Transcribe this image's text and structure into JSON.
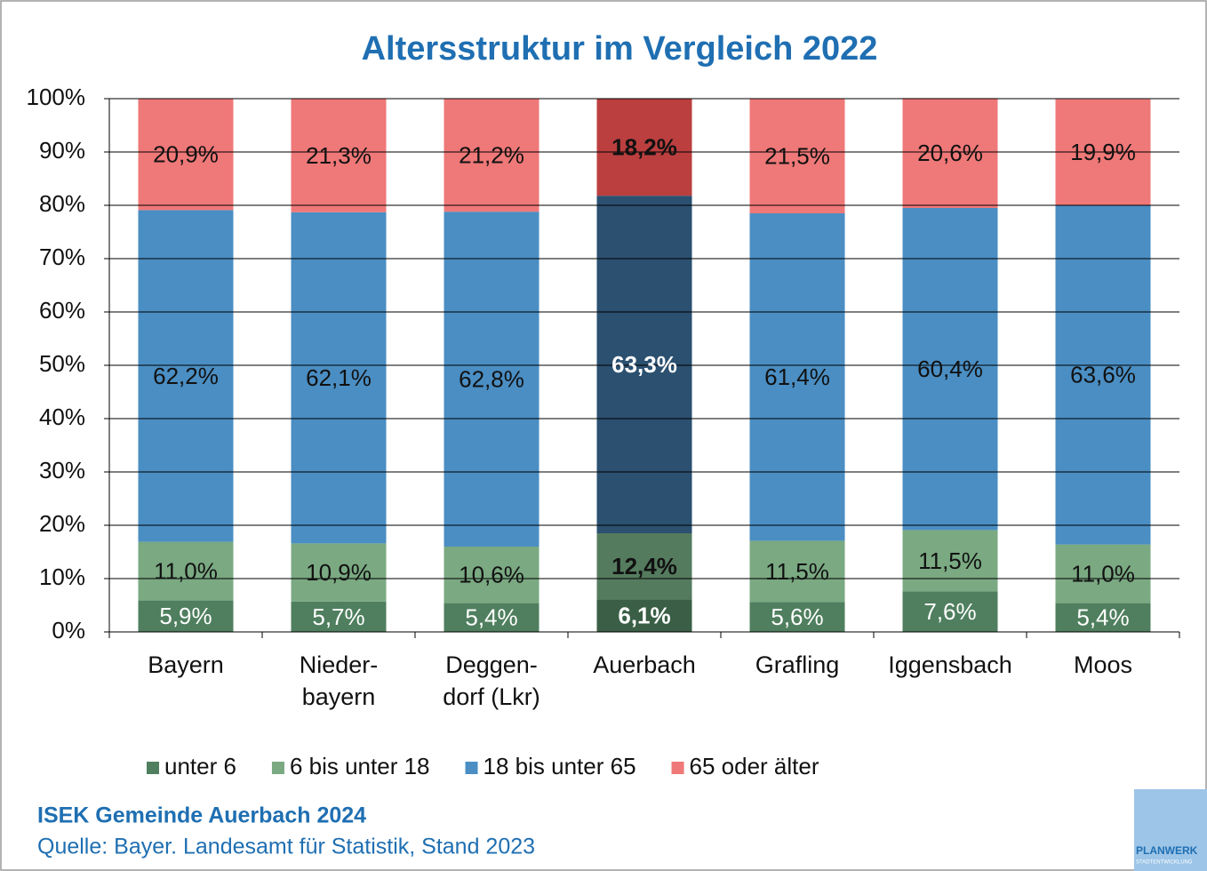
{
  "chart_data": {
    "type": "stacked_bar",
    "title": "Altersstruktur im Vergleich 2022",
    "categories": [
      "Bayern",
      "Nieder-\nbayern",
      "Deggen-\ndorf (Lkr)",
      "Auerbach",
      "Grafling",
      "Iggensbach",
      "Moos"
    ],
    "series": [
      {
        "name": "unter 6",
        "color": "#4f7f5e",
        "colors": [
          "#4f7f5e",
          "#4f7f5e",
          "#4f7f5e",
          "#3a5f46",
          "#4f7f5e",
          "#4f7f5e",
          "#4f7f5e"
        ],
        "label_colors": [
          "#ffffff",
          "#ffffff",
          "#ffffff",
          "#ffffff",
          "#ffffff",
          "#ffffff",
          "#ffffff"
        ],
        "values": [
          5.9,
          5.7,
          5.4,
          6.1,
          5.6,
          7.6,
          5.4
        ],
        "value_labels": [
          "5,9%",
          "5,7%",
          "5,4%",
          "6,1%",
          "5,6%",
          "7,6%",
          "5,4%"
        ]
      },
      {
        "name": "6 bis unter 18",
        "color": "#7aa982",
        "colors": [
          "#7aa982",
          "#7aa982",
          "#7aa982",
          "#557b5f",
          "#7aa982",
          "#7aa982",
          "#7aa982"
        ],
        "label_colors": [
          "#111111",
          "#111111",
          "#111111",
          "#111111",
          "#111111",
          "#111111",
          "#111111"
        ],
        "values": [
          11.0,
          10.9,
          10.6,
          12.4,
          11.5,
          11.5,
          11.0
        ],
        "value_labels": [
          "11,0%",
          "10,9%",
          "10,6%",
          "12,4%",
          "11,5%",
          "11,5%",
          "11,0%"
        ]
      },
      {
        "name": "18 bis unter 65",
        "color": "#4a8ec3",
        "colors": [
          "#4a8ec3",
          "#4a8ec3",
          "#4a8ec3",
          "#2b5070",
          "#4a8ec3",
          "#4a8ec3",
          "#4a8ec3"
        ],
        "label_colors": [
          "#111111",
          "#111111",
          "#111111",
          "#ffffff",
          "#111111",
          "#111111",
          "#111111"
        ],
        "values": [
          62.2,
          62.1,
          62.8,
          63.3,
          61.4,
          60.4,
          63.6
        ],
        "value_labels": [
          "62,2%",
          "62,1%",
          "62,8%",
          "63,3%",
          "61,4%",
          "60,4%",
          "63,6%"
        ]
      },
      {
        "name": "65 oder älter",
        "color": "#ef7878",
        "colors": [
          "#ef7878",
          "#ef7878",
          "#ef7878",
          "#bb3f3f",
          "#ef7878",
          "#ef7878",
          "#ef7878"
        ],
        "label_colors": [
          "#111111",
          "#111111",
          "#111111",
          "#111111",
          "#111111",
          "#111111",
          "#111111"
        ],
        "values": [
          20.9,
          21.3,
          21.2,
          18.2,
          21.5,
          20.6,
          19.9
        ],
        "value_labels": [
          "20,9%",
          "21,3%",
          "21,2%",
          "18,2%",
          "21,5%",
          "20,6%",
          "19,9%"
        ]
      }
    ],
    "label_weights": [
      "normal",
      "normal",
      "normal",
      "bold",
      "normal",
      "normal",
      "normal"
    ],
    "ylim": [
      0,
      100
    ],
    "yticks": [
      {
        "value": 0,
        "label": "0%"
      },
      {
        "value": 10,
        "label": "10%"
      },
      {
        "value": 20,
        "label": "20%"
      },
      {
        "value": 30,
        "label": "30%"
      },
      {
        "value": 40,
        "label": "40%"
      },
      {
        "value": 50,
        "label": "50%"
      },
      {
        "value": 60,
        "label": "60%"
      },
      {
        "value": 70,
        "label": "70%"
      },
      {
        "value": 80,
        "label": "80%"
      },
      {
        "value": 90,
        "label": "90%"
      },
      {
        "value": 100,
        "label": "100%"
      }
    ],
    "grid": true,
    "legend": "bottom",
    "source_title": "ISEK Gemeinde Auerbach 2024",
    "source": "Quelle: Bayer. Landesamt für Statistik, Stand 2023",
    "logo": "PLANWERK",
    "logo_sub": "STADTENTWICKLUNG"
  }
}
